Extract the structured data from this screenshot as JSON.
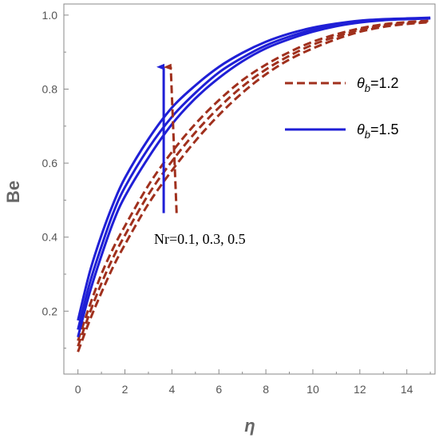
{
  "colors": {
    "series_a": "#a0301d",
    "series_b": "#1f1fd6",
    "axis": "#8a8a8a",
    "tick_text": "#555555"
  },
  "chart_data": {
    "type": "line",
    "xlabel": "η",
    "ylabel": "Be",
    "xlim": [
      -0.6,
      15.2
    ],
    "ylim": [
      0.03,
      1.03
    ],
    "x_ticks": [
      "0",
      "2",
      "4",
      "6",
      "8",
      "10",
      "12",
      "14"
    ],
    "y_ticks": [
      "0.2",
      "0.4",
      "0.6",
      "0.8",
      "1.0"
    ],
    "x": [
      0,
      0.5,
      1,
      1.5,
      2,
      3,
      4,
      5,
      6,
      7,
      8,
      9,
      10,
      11,
      12,
      13,
      14,
      15
    ],
    "grid": false,
    "legend_position": "right",
    "series": [
      {
        "name": "θ_b=1.2, Nr=0.1",
        "style": "dashed",
        "values": [
          0.09,
          0.175,
          0.25,
          0.32,
          0.38,
          0.49,
          0.58,
          0.66,
          0.73,
          0.79,
          0.84,
          0.88,
          0.91,
          0.935,
          0.955,
          0.968,
          0.976,
          0.981
        ]
      },
      {
        "name": "θ_b=1.2, Nr=0.3",
        "style": "dashed",
        "values": [
          0.105,
          0.195,
          0.275,
          0.345,
          0.405,
          0.515,
          0.605,
          0.683,
          0.75,
          0.807,
          0.853,
          0.89,
          0.92,
          0.942,
          0.96,
          0.972,
          0.979,
          0.983
        ]
      },
      {
        "name": "θ_b=1.2, Nr=0.5",
        "style": "dashed",
        "values": [
          0.12,
          0.215,
          0.3,
          0.37,
          0.43,
          0.54,
          0.63,
          0.706,
          0.77,
          0.824,
          0.866,
          0.9,
          0.928,
          0.948,
          0.964,
          0.975,
          0.981,
          0.985
        ]
      },
      {
        "name": "θ_b=1.5, Nr=0.1",
        "style": "solid",
        "values": [
          0.13,
          0.25,
          0.35,
          0.44,
          0.51,
          0.615,
          0.705,
          0.775,
          0.83,
          0.875,
          0.91,
          0.935,
          0.955,
          0.97,
          0.98,
          0.986,
          0.989,
          0.991
        ]
      },
      {
        "name": "θ_b=1.5, Nr=0.3",
        "style": "solid",
        "values": [
          0.15,
          0.275,
          0.375,
          0.465,
          0.535,
          0.64,
          0.725,
          0.79,
          0.845,
          0.885,
          0.918,
          0.942,
          0.96,
          0.973,
          0.982,
          0.987,
          0.99,
          0.992
        ]
      },
      {
        "name": "θ_b=1.5, Nr=0.5",
        "style": "solid",
        "values": [
          0.175,
          0.305,
          0.405,
          0.49,
          0.56,
          0.665,
          0.75,
          0.81,
          0.86,
          0.898,
          0.928,
          0.95,
          0.966,
          0.977,
          0.985,
          0.989,
          0.991,
          0.993
        ]
      }
    ],
    "legend": [
      {
        "label": "θ",
        "sub": "b",
        "suffix": "=1.2",
        "style": "dashed"
      },
      {
        "label": "θ",
        "sub": "b",
        "suffix": "=1.5",
        "style": "solid"
      }
    ],
    "annotation": "Nr=0.1, 0.3, 0.5",
    "arrows": [
      {
        "series": "θ_b=1.5",
        "from": [
          3.65,
          0.465
        ],
        "to": [
          3.65,
          0.86
        ]
      },
      {
        "series": "θ_b=1.2",
        "from": [
          4.2,
          0.465
        ],
        "to": [
          3.95,
          0.86
        ]
      }
    ]
  }
}
